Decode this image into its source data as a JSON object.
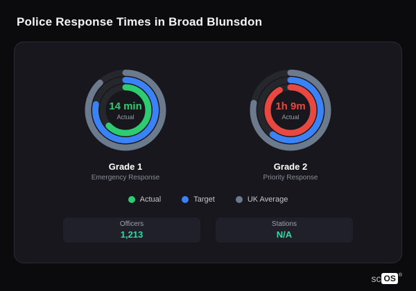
{
  "page": {
    "title": "Police Response Times in Broad Blunsdon"
  },
  "chart_data": {
    "type": "gauge",
    "title": "Police Response Times in Broad Blunsdon",
    "rings_order_outer_to_inner": [
      "uk_average",
      "target",
      "actual"
    ],
    "gauges": [
      {
        "grade": "Grade 1",
        "subtitle": "Emergency Response",
        "actual_label": "14 min",
        "actual_sublabel": "Actual",
        "actual_color": "#2ecc71",
        "ring_fractions": {
          "actual": 0.63,
          "target": 0.78,
          "uk_average": 0.88
        }
      },
      {
        "grade": "Grade 2",
        "subtitle": "Priority Response",
        "actual_label": "1h 9m",
        "actual_sublabel": "Actual",
        "actual_color": "#e8483f",
        "ring_fractions": {
          "actual": 0.92,
          "target": 0.6,
          "uk_average": 0.78
        }
      }
    ],
    "legend": [
      {
        "label": "Actual",
        "color": "#2ecc71"
      },
      {
        "label": "Target",
        "color": "#3b82f6"
      },
      {
        "label": "UK Average",
        "color": "#6b7a8c"
      }
    ],
    "stats": [
      {
        "label": "Officers",
        "value": "1,213"
      },
      {
        "label": "Stations",
        "value": "N/A"
      }
    ],
    "colors": {
      "track": "#26262d",
      "stat_value": "#36d9a3"
    }
  },
  "branding": {
    "prefix": "sc",
    "suffix": "OS",
    "reg": "®"
  }
}
